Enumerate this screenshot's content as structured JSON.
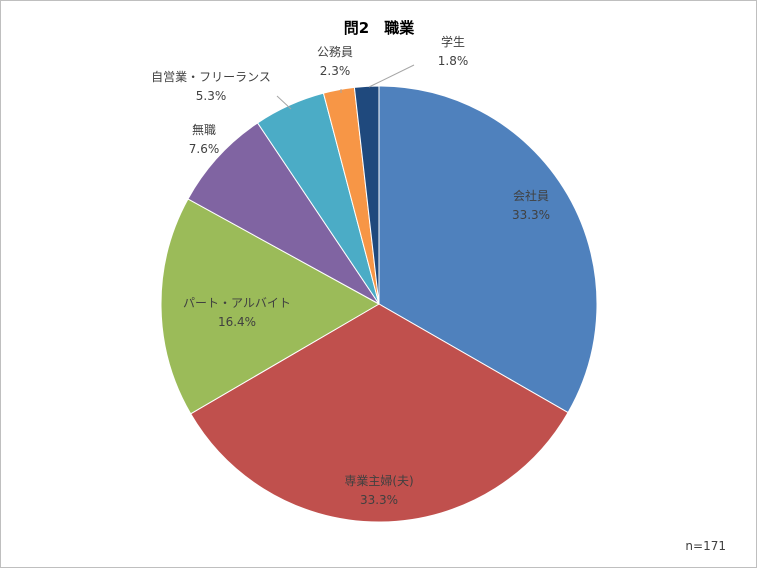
{
  "chart_data": {
    "type": "pie",
    "title": "問2　職業",
    "note": "n=171",
    "start_angle_deg": 0,
    "direction": "clockwise",
    "slices": [
      {
        "label": "会社員",
        "value": 33.3,
        "value_label": "33.3%",
        "color": "#4F81BD"
      },
      {
        "label": "専業主婦(夫)",
        "value": 33.3,
        "value_label": "33.3%",
        "color": "#C0504D"
      },
      {
        "label": "パート・アルバイト",
        "value": 16.4,
        "value_label": "16.4%",
        "color": "#9BBB59"
      },
      {
        "label": "無職",
        "value": 7.6,
        "value_label": "7.6%",
        "color": "#8064A2"
      },
      {
        "label": "自営業・フリーランス",
        "value": 5.3,
        "value_label": "5.3%",
        "color": "#4BACC6"
      },
      {
        "label": "公務員",
        "value": 2.3,
        "value_label": "2.3%",
        "color": "#F79646"
      },
      {
        "label": "学生",
        "value": 1.8,
        "value_label": "1.8%",
        "color": "#1F497D"
      }
    ]
  }
}
